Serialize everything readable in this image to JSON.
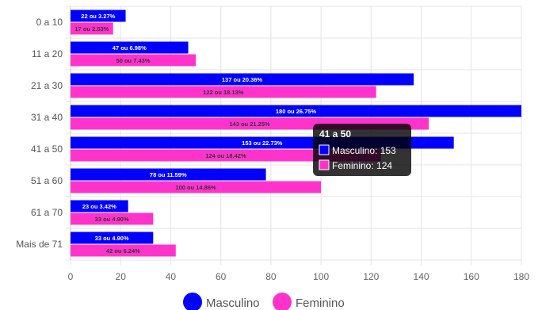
{
  "chart_data": {
    "type": "bar",
    "orientation": "horizontal",
    "categories": [
      "0 a 10",
      "11 a 20",
      "21 a 30",
      "31 a 40",
      "41 a 50",
      "51 a 60",
      "61 a 70",
      "Mais de 71"
    ],
    "series": [
      {
        "name": "Masculino",
        "color": "#0000ff",
        "values": [
          22,
          47,
          137,
          180,
          153,
          78,
          23,
          33
        ],
        "labels": [
          "22 ou 3.27%",
          "47 ou 6.98%",
          "137 ou 20.36%",
          "180 ou 26.75%",
          "153 ou 22.73%",
          "78 ou 11.59%",
          "23 ou 3.42%",
          "33 ou 4.90%"
        ]
      },
      {
        "name": "Feminino",
        "color": "#ff33cc",
        "values": [
          17,
          50,
          122,
          143,
          124,
          100,
          33,
          42
        ],
        "labels": [
          "17 ou 2.53%",
          "50 ou 7.43%",
          "122 ou 18.13%",
          "143 ou 21.25%",
          "124 ou 18.42%",
          "100 ou 14.86%",
          "33 ou 4.90%",
          "42 ou 6.24%"
        ]
      }
    ],
    "xlim": [
      0,
      180
    ],
    "x_ticks": [
      "0",
      "20",
      "40",
      "60",
      "80",
      "100",
      "120",
      "140",
      "160",
      "180"
    ],
    "grid": true,
    "legend_position": "bottom",
    "tooltip": {
      "category_index": 4,
      "title": "41 a 50",
      "lines": [
        "Masculino: 153",
        "Feminino: 124"
      ]
    }
  }
}
